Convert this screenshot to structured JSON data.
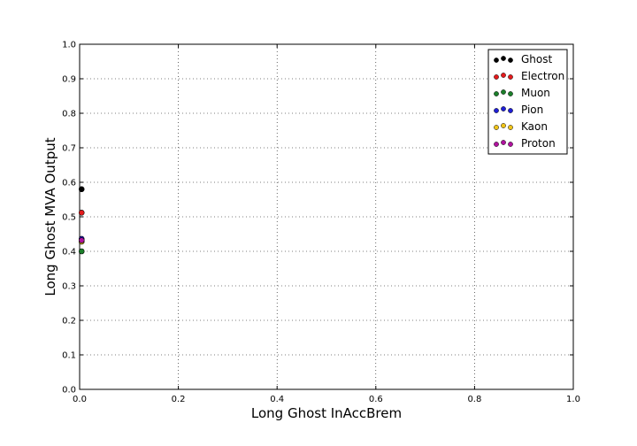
{
  "chart_data": {
    "type": "scatter",
    "title": "",
    "xlabel": "Long Ghost InAccBrem",
    "ylabel": "Long Ghost MVA Output",
    "xlim": [
      0,
      1
    ],
    "ylim": [
      0,
      1
    ],
    "xticks": [
      "0.0",
      "0.2",
      "0.4",
      "0.6",
      "0.8",
      "1.0"
    ],
    "yticks": [
      "0.0",
      "0.1",
      "0.2",
      "0.3",
      "0.4",
      "0.5",
      "0.6",
      "0.7",
      "0.8",
      "0.9",
      "1.0"
    ],
    "grid": true,
    "legend_position": "top-right",
    "series": [
      {
        "name": "Ghost",
        "color": "#000000",
        "points": [
          [
            0.004,
            0.58
          ]
        ]
      },
      {
        "name": "Electron",
        "color": "#e41a1c",
        "points": [
          [
            0.004,
            0.512
          ]
        ]
      },
      {
        "name": "Muon",
        "color": "#1b7f2a",
        "points": [
          [
            0.004,
            0.4
          ]
        ]
      },
      {
        "name": "Pion",
        "color": "#1f1fd6",
        "points": [
          [
            0.004,
            0.436
          ]
        ]
      },
      {
        "name": "Kaon",
        "color": "#f0c419",
        "points": [
          [
            0.004,
            0.428
          ]
        ]
      },
      {
        "name": "Proton",
        "color": "#b0129e",
        "points": [
          [
            0.004,
            0.432
          ]
        ]
      }
    ]
  }
}
